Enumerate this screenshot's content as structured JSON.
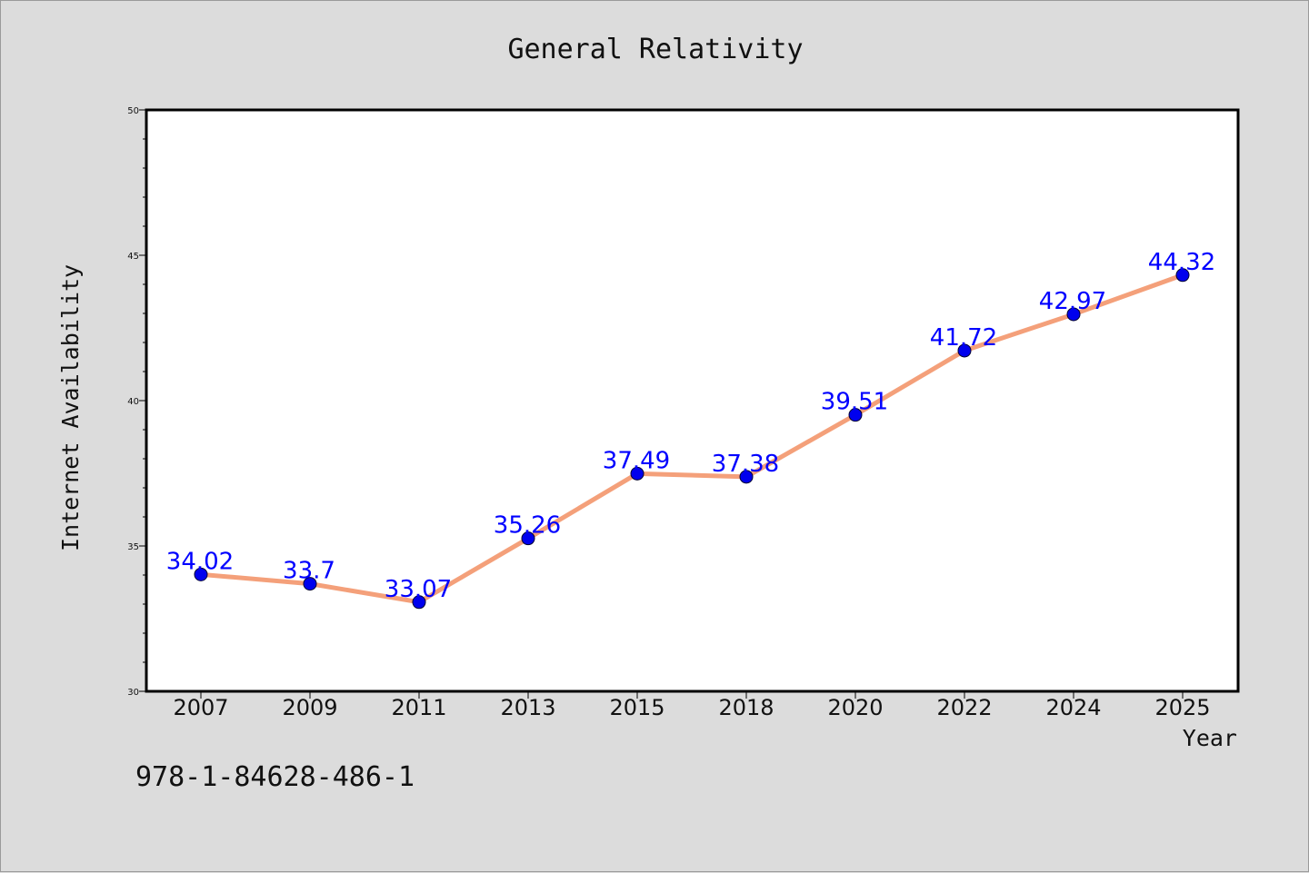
{
  "chart_data": {
    "type": "line",
    "title": "General Relativity",
    "xlabel": "Year",
    "ylabel": "Internet Availability",
    "categories": [
      "2007",
      "2009",
      "2011",
      "2013",
      "2015",
      "2018",
      "2020",
      "2022",
      "2024",
      "2025"
    ],
    "series": [
      {
        "values": [
          34.02,
          33.7,
          33.07,
          35.26,
          37.49,
          37.38,
          39.51,
          41.72,
          42.97,
          44.32
        ],
        "labels": [
          "34.02",
          "33.7",
          "33.07",
          "35.26",
          "37.49",
          "37.38",
          "39.51",
          "41.72",
          "42.97",
          "44.32"
        ],
        "line_color": "#f4a07a",
        "marker_color": "#0000ee"
      }
    ],
    "ylim": [
      30,
      50
    ],
    "yticks": [
      "30",
      "35",
      "40",
      "45",
      "50"
    ],
    "grid": false,
    "legend": "none"
  },
  "footer": {
    "code": "978-1-84628-486-1"
  }
}
